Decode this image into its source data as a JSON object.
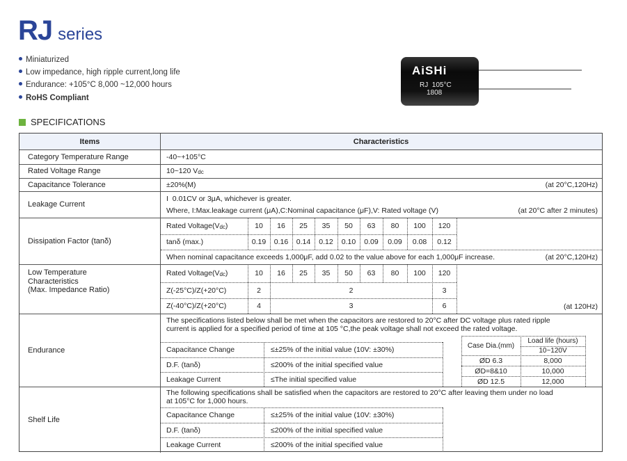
{
  "title": {
    "main": "RJ",
    "sub": "series"
  },
  "features": [
    "Miniaturized",
    "Low impedance, high ripple current,long life",
    "Endurance: +105°C 8,000 ~12,000 hours",
    "RoHS Compliant"
  ],
  "product_image": {
    "brand": "AiSHi",
    "line1": "RJ  105°C",
    "line2": "1808"
  },
  "section": "SPECIFICATIONS",
  "colors": {
    "title": "#2b4598",
    "section_square": "#6db33f",
    "header_bg": "#eef2fa"
  },
  "table": {
    "headers": [
      "Items",
      "Characteristics"
    ],
    "temp": {
      "item": "Category Temperature Range",
      "value": "-40~+105°C"
    },
    "voltage": {
      "item": "Rated Voltage Range",
      "value": "10~120 V",
      "unit": "dc"
    },
    "tolerance": {
      "item": "Capacitance Tolerance",
      "value": "±20%(M)",
      "note": "(at 20°C,120Hz)"
    },
    "leakage": {
      "item": "Leakage Current",
      "line1": "I  0.01CV or 3μA, whichever is greater.",
      "line2": "Where, I:Max.leakage current (μA),C:Nominal capacitance (μF),V: Rated voltage (V)",
      "note": "(at 20°C after 2 minutes)"
    },
    "df": {
      "item": "Dissipation Factor (tanδ)",
      "rv_label": "Rated Voltage(V",
      "rv_unit": "dc",
      "rv_close": ")",
      "voltages": [
        "10",
        "16",
        "25",
        "35",
        "50",
        "63",
        "80",
        "100",
        "120"
      ],
      "tan_label": "tanδ (max.)",
      "tan": [
        "0.19",
        "0.16",
        "0.14",
        "0.12",
        "0.10",
        "0.09",
        "0.09",
        "0.08",
        "0.12"
      ],
      "note": "When nominal capacitance exceeds 1,000μF, add 0.02 to the value above for each 1,000μF increase.",
      "note2": "(at 20°C,120Hz)"
    },
    "lowtemp": {
      "item_lines": [
        "Low Temperature",
        "Characteristics",
        "(Max. Impedance Ratio)"
      ],
      "z25_label": "Z(-25°C)/Z(+20°C)",
      "z25": [
        "2",
        "2",
        "3"
      ],
      "z40_label": "Z(-40°C)/Z(+20°C)",
      "z40": [
        "4",
        "3",
        "6"
      ],
      "note": "(at 120Hz)"
    },
    "endurance": {
      "item": "Endurance",
      "text1": "The specifications listed below shall be met when the capacitors are restored to 20°C after DC voltage plus rated ripple",
      "text2": "current is applied for a specified period of time at 105 °C,the peak voltage shall not exceed the rated voltage.",
      "rows": [
        [
          "Capacitance Change",
          "≤±25% of the initial value (10V:  ±30%)"
        ],
        [
          "D.F. (tanδ)",
          "≤200% of the initial specified value"
        ],
        [
          "Leakage Current",
          "≤The initial specified value"
        ]
      ],
      "case_header": "Case Dia.(mm)",
      "life_header": "Load life (hours)",
      "life_sub": "10~120V",
      "cases": [
        [
          "ØD  6.3",
          "8,000"
        ],
        [
          "ØD=8&10",
          "10,000"
        ],
        [
          "ØD  12.5",
          "12,000"
        ]
      ]
    },
    "shelf": {
      "item": "Shelf Life",
      "text1": "The following specifications shall be satisfied when the capacitors are restored to 20°C after leaving them under no load",
      "text2": "at 105°C for 1,000 hours.",
      "rows": [
        [
          "Capacitance Change",
          "≤±25% of the initial value (10V:  ±30%)"
        ],
        [
          "D.F. (tanδ)",
          "≤200% of the initial specified value"
        ],
        [
          "Leakage Current",
          "≤200% of the initial specified value"
        ]
      ]
    }
  }
}
